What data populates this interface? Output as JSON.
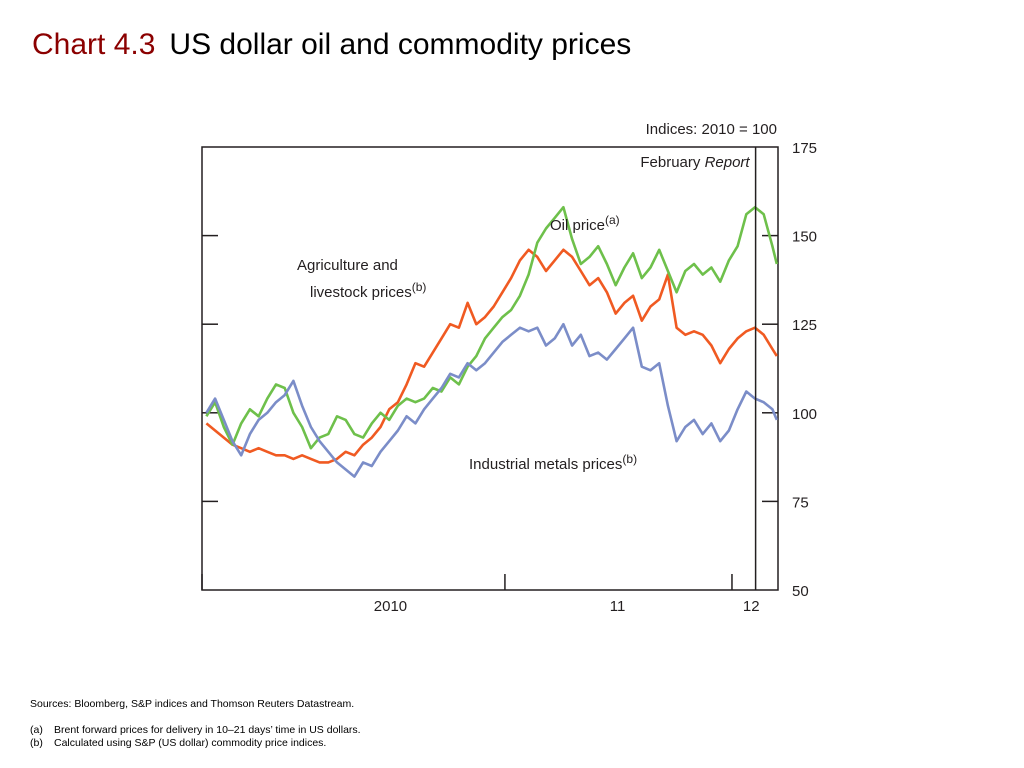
{
  "slide": {
    "chart_number": "Chart 4.3",
    "title": "US dollar oil and commodity prices"
  },
  "chart_data": {
    "type": "line",
    "index_note": "Indices:  2010 = 100",
    "ylim": [
      50,
      175
    ],
    "y_ticks": [
      50,
      75,
      100,
      125,
      150,
      175
    ],
    "x_range": [
      "2009-09-01",
      "2012-03-15"
    ],
    "x_ticks": [
      "2009-09-01",
      "2011-01-01",
      "2012-01-01"
    ],
    "x_tick_labels": [
      {
        "label": "2010",
        "date": "2010-07-01"
      },
      {
        "label": "11",
        "date": "2011-07-01"
      },
      {
        "label": "12",
        "date": "2012-02-01"
      }
    ],
    "annotation_line": {
      "label": "February ",
      "label_italic": "Report",
      "date": "2012-02-08"
    },
    "series": [
      {
        "key": "agri",
        "label_lines": [
          "Agriculture and",
          "livestock prices"
        ],
        "label_superscript": "(b)",
        "color": "#f05a22",
        "points": [
          [
            "2009-09-08",
            97
          ],
          [
            "2009-09-22",
            95
          ],
          [
            "2009-10-06",
            93
          ],
          [
            "2009-10-20",
            91
          ],
          [
            "2009-11-03",
            90
          ],
          [
            "2009-11-17",
            89
          ],
          [
            "2009-12-01",
            90
          ],
          [
            "2009-12-15",
            89
          ],
          [
            "2009-12-29",
            88
          ],
          [
            "2010-01-12",
            88
          ],
          [
            "2010-01-26",
            87
          ],
          [
            "2010-02-09",
            88
          ],
          [
            "2010-02-23",
            87
          ],
          [
            "2010-03-09",
            86
          ],
          [
            "2010-03-23",
            86
          ],
          [
            "2010-04-06",
            87
          ],
          [
            "2010-04-20",
            89
          ],
          [
            "2010-05-04",
            88
          ],
          [
            "2010-05-18",
            91
          ],
          [
            "2010-06-01",
            93
          ],
          [
            "2010-06-15",
            96
          ],
          [
            "2010-06-29",
            101
          ],
          [
            "2010-07-13",
            103
          ],
          [
            "2010-07-27",
            108
          ],
          [
            "2010-08-10",
            114
          ],
          [
            "2010-08-24",
            113
          ],
          [
            "2010-09-07",
            117
          ],
          [
            "2010-09-21",
            121
          ],
          [
            "2010-10-05",
            125
          ],
          [
            "2010-10-19",
            124
          ],
          [
            "2010-11-02",
            131
          ],
          [
            "2010-11-16",
            125
          ],
          [
            "2010-11-30",
            127
          ],
          [
            "2010-12-14",
            130
          ],
          [
            "2010-12-28",
            134
          ],
          [
            "2011-01-11",
            138
          ],
          [
            "2011-01-25",
            143
          ],
          [
            "2011-02-08",
            146
          ],
          [
            "2011-02-22",
            144
          ],
          [
            "2011-03-08",
            140
          ],
          [
            "2011-03-22",
            143
          ],
          [
            "2011-04-05",
            146
          ],
          [
            "2011-04-19",
            144
          ],
          [
            "2011-05-03",
            140
          ],
          [
            "2011-05-17",
            136
          ],
          [
            "2011-05-31",
            138
          ],
          [
            "2011-06-14",
            134
          ],
          [
            "2011-06-28",
            128
          ],
          [
            "2011-07-12",
            131
          ],
          [
            "2011-07-26",
            133
          ],
          [
            "2011-08-09",
            126
          ],
          [
            "2011-08-23",
            130
          ],
          [
            "2011-09-06",
            132
          ],
          [
            "2011-09-20",
            139
          ],
          [
            "2011-10-04",
            124
          ],
          [
            "2011-10-18",
            122
          ],
          [
            "2011-11-01",
            123
          ],
          [
            "2011-11-15",
            122
          ],
          [
            "2011-11-29",
            119
          ],
          [
            "2011-12-13",
            114
          ],
          [
            "2011-12-27",
            118
          ],
          [
            "2012-01-10",
            121
          ],
          [
            "2012-01-24",
            123
          ],
          [
            "2012-02-07",
            124
          ],
          [
            "2012-02-21",
            122
          ],
          [
            "2012-03-06",
            118
          ],
          [
            "2012-03-13",
            116
          ]
        ]
      },
      {
        "key": "oil",
        "label_lines": [
          "Oil price"
        ],
        "label_superscript": "(a)",
        "color": "#6ec04b",
        "points": [
          [
            "2009-09-08",
            99
          ],
          [
            "2009-09-22",
            103
          ],
          [
            "2009-10-06",
            96
          ],
          [
            "2009-10-20",
            91
          ],
          [
            "2009-11-03",
            97
          ],
          [
            "2009-11-17",
            101
          ],
          [
            "2009-12-01",
            99
          ],
          [
            "2009-12-15",
            104
          ],
          [
            "2009-12-29",
            108
          ],
          [
            "2010-01-12",
            107
          ],
          [
            "2010-01-26",
            100
          ],
          [
            "2010-02-09",
            96
          ],
          [
            "2010-02-23",
            90
          ],
          [
            "2010-03-09",
            93
          ],
          [
            "2010-03-23",
            94
          ],
          [
            "2010-04-06",
            99
          ],
          [
            "2010-04-20",
            98
          ],
          [
            "2010-05-04",
            94
          ],
          [
            "2010-05-18",
            93
          ],
          [
            "2010-06-01",
            97
          ],
          [
            "2010-06-15",
            100
          ],
          [
            "2010-06-29",
            98
          ],
          [
            "2010-07-13",
            102
          ],
          [
            "2010-07-27",
            104
          ],
          [
            "2010-08-10",
            103
          ],
          [
            "2010-08-24",
            104
          ],
          [
            "2010-09-07",
            107
          ],
          [
            "2010-09-21",
            106
          ],
          [
            "2010-10-05",
            110
          ],
          [
            "2010-10-19",
            108
          ],
          [
            "2010-11-02",
            113
          ],
          [
            "2010-11-16",
            116
          ],
          [
            "2010-11-30",
            121
          ],
          [
            "2010-12-14",
            124
          ],
          [
            "2010-12-28",
            127
          ],
          [
            "2011-01-11",
            129
          ],
          [
            "2011-01-25",
            133
          ],
          [
            "2011-02-08",
            139
          ],
          [
            "2011-02-22",
            148
          ],
          [
            "2011-03-08",
            152
          ],
          [
            "2011-03-22",
            155
          ],
          [
            "2011-04-05",
            158
          ],
          [
            "2011-04-19",
            149
          ],
          [
            "2011-05-03",
            142
          ],
          [
            "2011-05-17",
            144
          ],
          [
            "2011-05-31",
            147
          ],
          [
            "2011-06-14",
            142
          ],
          [
            "2011-06-28",
            136
          ],
          [
            "2011-07-12",
            141
          ],
          [
            "2011-07-26",
            145
          ],
          [
            "2011-08-09",
            138
          ],
          [
            "2011-08-23",
            141
          ],
          [
            "2011-09-06",
            146
          ],
          [
            "2011-09-20",
            140
          ],
          [
            "2011-10-04",
            134
          ],
          [
            "2011-10-18",
            140
          ],
          [
            "2011-11-01",
            142
          ],
          [
            "2011-11-15",
            139
          ],
          [
            "2011-11-29",
            141
          ],
          [
            "2011-12-13",
            137
          ],
          [
            "2011-12-27",
            143
          ],
          [
            "2012-01-10",
            147
          ],
          [
            "2012-01-24",
            156
          ],
          [
            "2012-02-07",
            158
          ],
          [
            "2012-02-21",
            156
          ],
          [
            "2012-03-06",
            147
          ],
          [
            "2012-03-13",
            142
          ]
        ]
      },
      {
        "key": "metals",
        "label_lines": [
          "Industrial metals prices"
        ],
        "label_superscript": "(b)",
        "color": "#7b8dc8",
        "points": [
          [
            "2009-09-08",
            100
          ],
          [
            "2009-09-22",
            104
          ],
          [
            "2009-10-06",
            98
          ],
          [
            "2009-10-20",
            92
          ],
          [
            "2009-11-03",
            88
          ],
          [
            "2009-11-17",
            94
          ],
          [
            "2009-12-01",
            98
          ],
          [
            "2009-12-15",
            100
          ],
          [
            "2009-12-29",
            103
          ],
          [
            "2010-01-12",
            105
          ],
          [
            "2010-01-26",
            109
          ],
          [
            "2010-02-09",
            102
          ],
          [
            "2010-02-23",
            96
          ],
          [
            "2010-03-09",
            92
          ],
          [
            "2010-03-23",
            89
          ],
          [
            "2010-04-06",
            86
          ],
          [
            "2010-04-20",
            84
          ],
          [
            "2010-05-04",
            82
          ],
          [
            "2010-05-18",
            86
          ],
          [
            "2010-06-01",
            85
          ],
          [
            "2010-06-15",
            89
          ],
          [
            "2010-06-29",
            92
          ],
          [
            "2010-07-13",
            95
          ],
          [
            "2010-07-27",
            99
          ],
          [
            "2010-08-10",
            97
          ],
          [
            "2010-08-24",
            101
          ],
          [
            "2010-09-07",
            104
          ],
          [
            "2010-09-21",
            107
          ],
          [
            "2010-10-05",
            111
          ],
          [
            "2010-10-19",
            110
          ],
          [
            "2010-11-02",
            114
          ],
          [
            "2010-11-16",
            112
          ],
          [
            "2010-11-30",
            114
          ],
          [
            "2010-12-14",
            117
          ],
          [
            "2010-12-28",
            120
          ],
          [
            "2011-01-11",
            122
          ],
          [
            "2011-01-25",
            124
          ],
          [
            "2011-02-08",
            123
          ],
          [
            "2011-02-22",
            124
          ],
          [
            "2011-03-08",
            119
          ],
          [
            "2011-03-22",
            121
          ],
          [
            "2011-04-05",
            125
          ],
          [
            "2011-04-19",
            119
          ],
          [
            "2011-05-03",
            122
          ],
          [
            "2011-05-17",
            116
          ],
          [
            "2011-05-31",
            117
          ],
          [
            "2011-06-14",
            115
          ],
          [
            "2011-06-28",
            118
          ],
          [
            "2011-07-12",
            121
          ],
          [
            "2011-07-26",
            124
          ],
          [
            "2011-08-09",
            113
          ],
          [
            "2011-08-23",
            112
          ],
          [
            "2011-09-06",
            114
          ],
          [
            "2011-09-20",
            102
          ],
          [
            "2011-10-04",
            92
          ],
          [
            "2011-10-18",
            96
          ],
          [
            "2011-11-01",
            98
          ],
          [
            "2011-11-15",
            94
          ],
          [
            "2011-11-29",
            97
          ],
          [
            "2011-12-13",
            92
          ],
          [
            "2011-12-27",
            95
          ],
          [
            "2012-01-10",
            101
          ],
          [
            "2012-01-24",
            106
          ],
          [
            "2012-02-07",
            104
          ],
          [
            "2012-02-21",
            103
          ],
          [
            "2012-03-06",
            101
          ],
          [
            "2012-03-13",
            98
          ]
        ]
      }
    ]
  },
  "footnotes": {
    "sources": "Sources:  Bloomberg, S&P indices and Thomson Reuters Datastream.",
    "notes": [
      {
        "marker": "(a)",
        "text": "Brent forward prices for delivery in 10–21 days’ time in US dollars."
      },
      {
        "marker": "(b)",
        "text": "Calculated using S&P (US dollar) commodity price indices."
      }
    ]
  }
}
